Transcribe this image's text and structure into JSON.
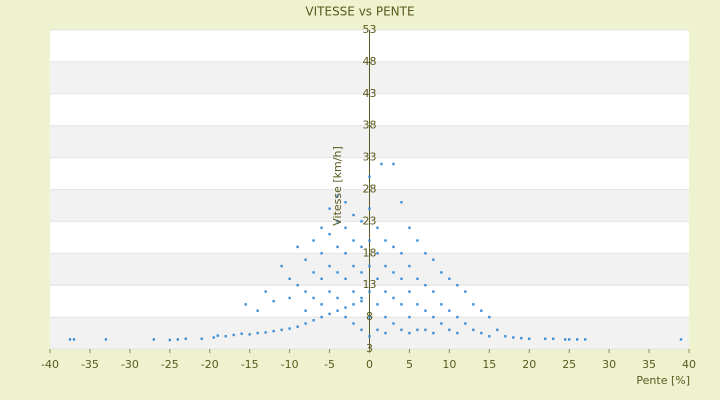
{
  "chart_data": {
    "type": "scatter",
    "title": "VITESSE vs PENTE",
    "x_label": "Pente [%]",
    "y_label": "Vitesse [km/h]",
    "color": "#3d8fd8",
    "grid": true,
    "xlim": [
      -40,
      40
    ],
    "xticks": [
      -40,
      -35,
      -30,
      -25,
      -20,
      -15,
      -10,
      -5,
      0,
      5,
      10,
      15,
      20,
      25,
      30,
      35,
      40
    ],
    "ylim": [
      3,
      53
    ],
    "yticks": [
      3,
      8,
      13,
      18,
      23,
      28,
      33,
      38,
      43,
      48,
      53
    ],
    "x": [
      -37.5,
      -37,
      -33,
      -27,
      -25,
      -24,
      -23,
      -21,
      -19.5,
      -19,
      -18,
      -17,
      -16,
      -15,
      -14,
      -13,
      -12,
      -11,
      -10,
      -9,
      -8,
      -7,
      -6,
      -5,
      -4,
      -3,
      -2,
      -1,
      -15.5,
      -14,
      -13,
      -12,
      -11,
      -10,
      -10,
      -9,
      -9,
      -8,
      -8,
      -8,
      -7,
      -7,
      -7,
      -6,
      -6,
      -6,
      -6,
      -5,
      -5,
      -5,
      -5,
      -4,
      -4,
      -4,
      -4,
      -4,
      -3,
      -3,
      -3,
      -3,
      -3,
      -2,
      -2,
      -2,
      -2,
      -2,
      -1,
      -1,
      -1,
      -1,
      -1,
      0,
      0,
      0,
      0,
      0,
      0,
      0,
      1,
      1,
      1,
      1,
      1,
      1.5,
      2,
      2,
      2,
      2,
      2,
      3,
      3,
      3,
      3,
      3,
      4,
      4,
      4,
      4,
      4,
      5,
      5,
      5,
      5,
      5,
      6,
      6,
      6,
      6,
      7,
      7,
      7,
      7,
      8,
      8,
      8,
      8,
      9,
      9,
      9,
      10,
      10,
      10,
      11,
      11,
      11,
      12,
      12,
      13,
      13,
      14,
      14,
      15,
      15,
      16,
      17,
      18,
      19,
      20,
      22,
      23,
      24.5,
      25,
      26,
      27,
      39
    ],
    "y": [
      4.5,
      4.5,
      4.5,
      4.5,
      4.4,
      4.5,
      4.6,
      4.6,
      4.8,
      5.1,
      5,
      5.2,
      5.4,
      5.3,
      5.5,
      5.6,
      5.8,
      6,
      6.2,
      6.5,
      7,
      7.5,
      8,
      8.5,
      9,
      9.5,
      10,
      10.5,
      10,
      9,
      12,
      10.5,
      16,
      14,
      11,
      19,
      13,
      17,
      12,
      9,
      20,
      15,
      11,
      22,
      18,
      14,
      10,
      25,
      21,
      16,
      12,
      27,
      23,
      19,
      15,
      11,
      26,
      22,
      18,
      14,
      8,
      24,
      20,
      16,
      12,
      7,
      23,
      19,
      15,
      11,
      6,
      30,
      25,
      20,
      16,
      12,
      8,
      5,
      22,
      18,
      14,
      10,
      6,
      32,
      20,
      16,
      12,
      8,
      5.5,
      32,
      19,
      15,
      11,
      7,
      26,
      18,
      14,
      10,
      6,
      22,
      16,
      12,
      8,
      5.5,
      20,
      14,
      10,
      6,
      18,
      13,
      9,
      6,
      17,
      12,
      8,
      5.5,
      15,
      10,
      7,
      14,
      9,
      6,
      13,
      8,
      5.5,
      12,
      7,
      10,
      6,
      9,
      5.5,
      8,
      5,
      6,
      5,
      4.8,
      4.7,
      4.6,
      4.6,
      4.6,
      4.5,
      4.5,
      4.5,
      4.5,
      4.5
    ]
  }
}
